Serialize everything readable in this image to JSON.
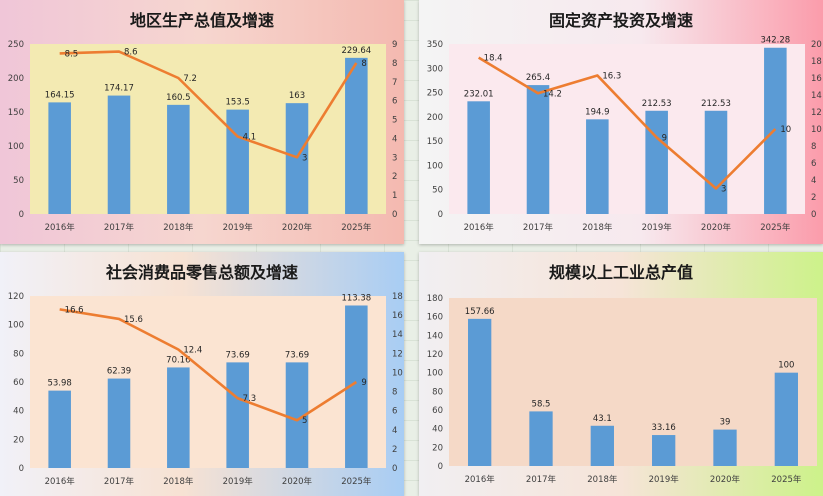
{
  "chart_data": [
    {
      "type": "bar",
      "title": "地区生产总值及增速",
      "categories": [
        "2016年",
        "2017年",
        "2018年",
        "2019年",
        "2020年",
        "2025年"
      ],
      "series": [
        {
          "values": [
            164.15,
            174.17,
            160.5,
            153.5,
            163,
            229.64
          ]
        },
        {
          "type": "line",
          "axis": "right",
          "values": [
            8.5,
            8.6,
            7.2,
            4.1,
            3,
            8
          ]
        }
      ],
      "ylim": [
        0,
        250
      ],
      "yticks": [
        0,
        50,
        100,
        150,
        200,
        250
      ],
      "y2lim": [
        0,
        9
      ],
      "y2ticks": [
        0,
        1,
        2,
        3,
        4,
        5,
        6,
        7,
        8,
        9
      ],
      "plot_bg": "#f3eab2",
      "bar_color": "#5b9bd5",
      "line_color": "#ed7d31"
    },
    {
      "type": "bar",
      "title": "固定资产投资及增速",
      "categories": [
        "2016年",
        "2017年",
        "2018年",
        "2019年",
        "2020年",
        "2025年"
      ],
      "series": [
        {
          "values": [
            232.01,
            265.4,
            194.9,
            212.53,
            212.53,
            342.28
          ]
        },
        {
          "type": "line",
          "axis": "right",
          "values": [
            18.4,
            14.2,
            16.3,
            9,
            3,
            10
          ]
        }
      ],
      "ylim": [
        0,
        350
      ],
      "yticks": [
        0,
        50,
        100,
        150,
        200,
        250,
        300,
        350
      ],
      "y2lim": [
        0,
        20
      ],
      "y2ticks": [
        0,
        2,
        4,
        6,
        8,
        10,
        12,
        14,
        16,
        18,
        20
      ],
      "plot_bg": "#fbe9ee",
      "bar_color": "#5b9bd5",
      "line_color": "#ed7d31"
    },
    {
      "type": "bar",
      "title": "社会消费品零售总额及增速",
      "categories": [
        "2016年",
        "2017年",
        "2018年",
        "2019年",
        "2020年",
        "2025年"
      ],
      "series": [
        {
          "values": [
            53.98,
            62.39,
            70.16,
            73.69,
            73.69,
            113.38
          ]
        },
        {
          "type": "line",
          "axis": "right",
          "values": [
            16.6,
            15.6,
            12.4,
            7.3,
            5,
            9
          ]
        }
      ],
      "ylim": [
        0,
        120
      ],
      "yticks": [
        0,
        20,
        40,
        60,
        80,
        100,
        120
      ],
      "y2lim": [
        0,
        18
      ],
      "y2ticks": [
        0,
        2,
        4,
        6,
        8,
        10,
        12,
        14,
        16,
        18
      ],
      "plot_bg": "#fbe4d2",
      "bar_color": "#5b9bd5",
      "line_color": "#ed7d31"
    },
    {
      "type": "bar",
      "title": "规模以上工业总产值",
      "categories": [
        "2016年",
        "2017年",
        "2018年",
        "2019年",
        "2020年",
        "2025年"
      ],
      "series": [
        {
          "values": [
            157.66,
            58.5,
            43.1,
            33.16,
            39,
            100
          ]
        }
      ],
      "ylim": [
        0,
        180
      ],
      "yticks": [
        0,
        20,
        40,
        60,
        80,
        100,
        120,
        140,
        160,
        180
      ],
      "plot_bg": "#f5d9c7",
      "bar_color": "#5b9bd5"
    }
  ]
}
